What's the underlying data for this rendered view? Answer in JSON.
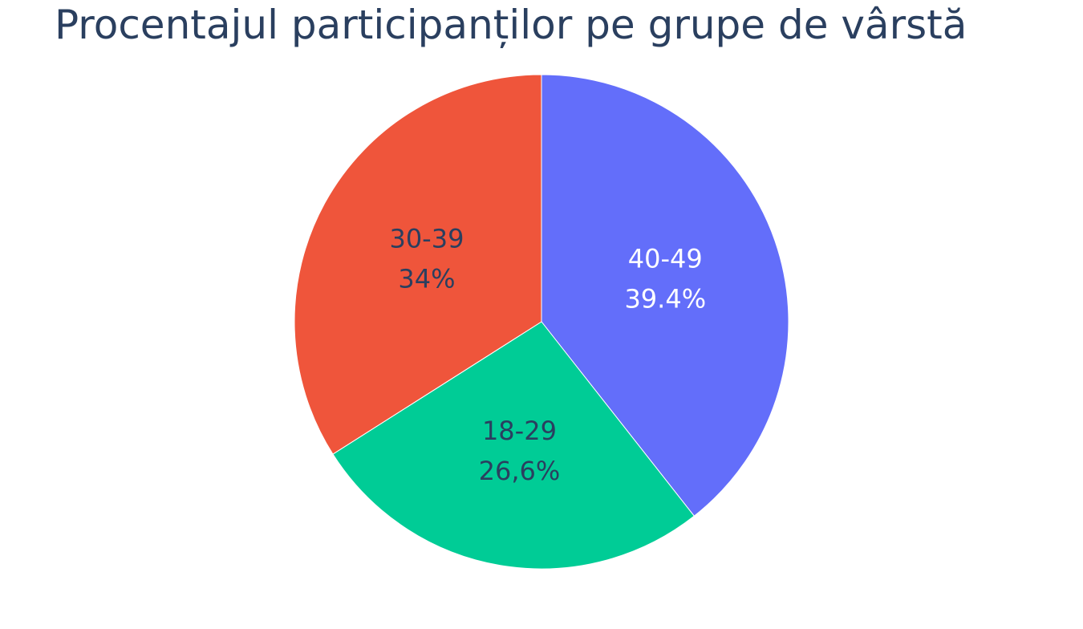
{
  "chart_data": {
    "type": "pie",
    "title": "Procentajul participanților pe grupe de vârstă",
    "slices": [
      {
        "label": "40-49",
        "value": 39.4,
        "value_text": "39.4%",
        "color": "#636efa",
        "text_color": "#ffffff"
      },
      {
        "label": "18-29",
        "value": 26.6,
        "value_text": "26,6%",
        "color": "#00cc96",
        "text_color": "#2a3f5f"
      },
      {
        "label": "30-39",
        "value": 34.0,
        "value_text": "34%",
        "color": "#ef553b",
        "text_color": "#2a3f5f"
      }
    ],
    "start": "12 o'clock",
    "direction": "clockwise",
    "legend": "none"
  }
}
